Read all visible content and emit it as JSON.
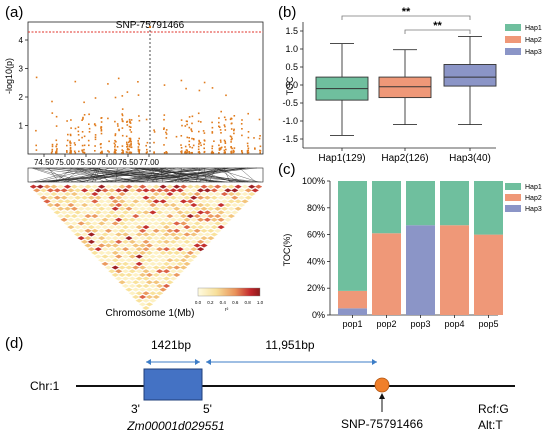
{
  "panels": {
    "a": {
      "letter": "(a)",
      "snp_label": "SNP-75791466",
      "ylabel": "-log10(p)",
      "yticks": [
        "1",
        "2",
        "3",
        "4"
      ],
      "xticks": [
        "74.50",
        "75.00",
        "75.50",
        "76.00",
        "76.50",
        "77.00"
      ],
      "ld_xlabel": "Chromosome 1(Mb)",
      "ld_scale_ticks": [
        "0.0",
        "0.2",
        "0.4",
        "0.6",
        "0.8",
        "1.0"
      ],
      "ld_scale_unit": "r²"
    },
    "b": {
      "letter": "(b)",
      "ylabel": "TOC",
      "sig1": "**",
      "sig2": "**"
    },
    "c": {
      "letter": "(c)",
      "ylabel": "TOC(%)"
    },
    "d": {
      "letter": "(d)",
      "chr_label": "Chr:1",
      "dist1": "1421bp",
      "dist2": "11,951bp",
      "three_prime": "3'",
      "five_prime": "5'",
      "gene": "Zm00001d029551",
      "snp": "SNP-75791466",
      "allele_ref": "Rcf:G",
      "allele_alt": "Alt:T"
    }
  },
  "colors": {
    "hap1": "#6fbf9e",
    "hap2": "#ef9878",
    "hap3": "#8b95c7",
    "manhattan": "#e07b1c",
    "threshold": "#e0312a",
    "gene_box": "#4472c4",
    "snp_dot": "#f07f2a",
    "arrow": "#3d7dc7"
  },
  "chart_data": [
    {
      "id": "b",
      "type": "box",
      "ylabel": "TOC",
      "categories": [
        "Hap1(129)",
        "Hap2(126)",
        "Hap3(40)"
      ],
      "yticks": [
        -1.5,
        -1.0,
        -0.5,
        0.0,
        0.5,
        1.0,
        1.5
      ],
      "ylim": [
        -1.75,
        1.75
      ],
      "legend": [
        "Hap1",
        "Hap2",
        "Hap3"
      ],
      "legend_position": "top-right",
      "series": [
        {
          "name": "Hap1",
          "min": -1.4,
          "q1": -0.42,
          "median": -0.1,
          "q3": 0.22,
          "max": 1.15
        },
        {
          "name": "Hap2",
          "min": -1.1,
          "q1": -0.35,
          "median": -0.05,
          "q3": 0.22,
          "max": 0.98
        },
        {
          "name": "Hap3",
          "min": -1.1,
          "q1": -0.03,
          "median": 0.22,
          "q3": 0.57,
          "max": 1.35
        }
      ],
      "significance": [
        {
          "from": "Hap1(129)",
          "to": "Hap3(40)",
          "label": "**"
        },
        {
          "from": "Hap2(126)",
          "to": "Hap3(40)",
          "label": "**"
        }
      ]
    },
    {
      "id": "c",
      "type": "stacked-bar",
      "ylabel": "TOC(%)",
      "categories": [
        "pop1",
        "pop2",
        "pop3",
        "pop4",
        "pop5"
      ],
      "yticks": [
        "0%",
        "20%",
        "40%",
        "60%",
        "80%",
        "100%"
      ],
      "ylim": [
        0,
        100
      ],
      "legend": [
        "Hap1",
        "Hap2",
        "Hap3"
      ],
      "legend_position": "top-right",
      "series": [
        {
          "name": "Hap3",
          "values": [
            5,
            0,
            67,
            0,
            0
          ]
        },
        {
          "name": "Hap2",
          "values": [
            13,
            61,
            0,
            67,
            60
          ]
        },
        {
          "name": "Hap1",
          "values": [
            82,
            39,
            33,
            33,
            40
          ]
        }
      ]
    }
  ]
}
